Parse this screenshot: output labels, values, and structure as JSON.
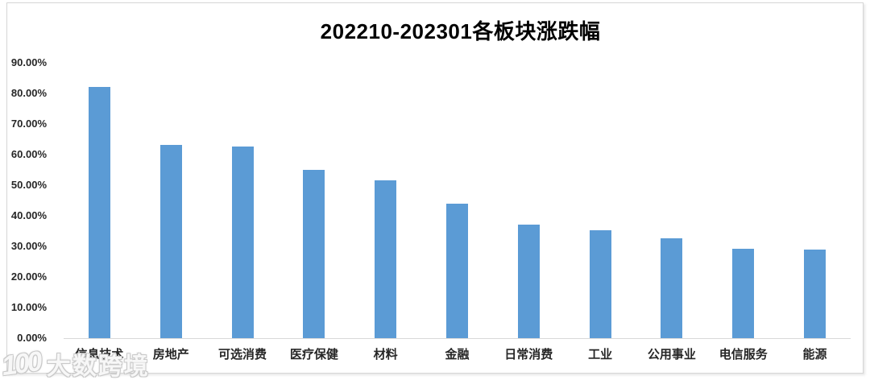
{
  "chart_data": {
    "type": "bar",
    "title": "202210-202301各板块涨跌幅",
    "categories": [
      "信息技术",
      "房地产",
      "可选消费",
      "医疗保健",
      "材料",
      "金融",
      "日常消费",
      "工业",
      "公用事业",
      "电信服务",
      "能源"
    ],
    "values": [
      82.0,
      63.2,
      62.6,
      54.9,
      51.6,
      43.9,
      37.0,
      35.2,
      32.7,
      29.3,
      28.9
    ],
    "unit": "%",
    "xlabel": "",
    "ylabel": "",
    "ylim": [
      0,
      90
    ],
    "ytick_labels": [
      "90.00%",
      "80.00%",
      "70.00%",
      "60.00%",
      "50.00%",
      "40.00%",
      "30.00%",
      "20.00%",
      "10.00%",
      "0.00%"
    ],
    "grid": false,
    "legend": false,
    "bar_color": "#5B9BD5",
    "axis_line_color": "#d9d9d9"
  },
  "watermark": {
    "logo": "100",
    "text": "大数跨境"
  }
}
